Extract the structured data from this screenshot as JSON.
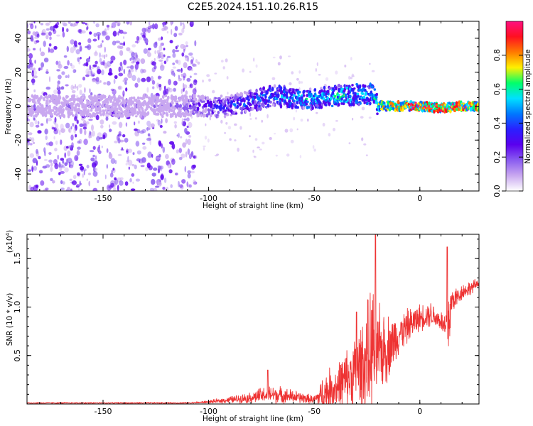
{
  "figure_title": "C2E5.2024.151.10.26.R15",
  "colors": {
    "snr_line": "#ee3333",
    "axis": "#000000",
    "colormap": [
      "#ffffff",
      "#c9a8f0",
      "#8a5cf0",
      "#5a00ee",
      "#2a20ff",
      "#0078ff",
      "#00e0ff",
      "#00ff6a",
      "#fff000",
      "#ff7a00",
      "#ff1020",
      "#ff1080"
    ]
  },
  "chart_data": [
    {
      "type": "heatmap",
      "panel": "top",
      "xlabel": "Height of straight line (km)",
      "ylabel": "Frequency (Hz)",
      "xlim": [
        -186,
        28
      ],
      "ylim": [
        -50,
        50
      ],
      "xticks": [
        -150,
        -100,
        -50,
        0
      ],
      "yticks": [
        -40,
        -20,
        0,
        20,
        40
      ],
      "colorbar": {
        "label": "Normalized spectral amplitude",
        "range": [
          0.0,
          1.0
        ],
        "ticks": [
          "0.0",
          "0.2",
          "0.4",
          "0.6",
          "0.8"
        ]
      },
      "ridge": {
        "x": [
          -186,
          -150,
          -120,
          -110,
          -100,
          -90,
          -80,
          -70,
          -60,
          -50,
          -40,
          -30,
          -25,
          -22,
          -20,
          -15,
          -10,
          0,
          10,
          20,
          28
        ],
        "freq": [
          0,
          0,
          0,
          0,
          0,
          0,
          3,
          6,
          5,
          4,
          6,
          7,
          6,
          7,
          0,
          0,
          0,
          0,
          -1,
          0,
          0
        ],
        "amplitude": [
          0.15,
          0.15,
          0.15,
          0.25,
          0.35,
          0.4,
          0.45,
          0.5,
          0.55,
          0.55,
          0.6,
          0.6,
          0.55,
          0.6,
          0.65,
          0.8,
          0.9,
          0.9,
          0.9,
          0.9,
          0.9
        ]
      }
    },
    {
      "type": "line",
      "panel": "bottom",
      "xlabel": "Height of straight line (km)",
      "ylabel": "SNR (10 * v/v)",
      "y_multiplier": "(x10",
      "y_multiplier_exp": "4",
      "xlim": [
        -186,
        28
      ],
      "ylim": [
        0,
        1.75
      ],
      "xticks": [
        -150,
        -100,
        -50,
        0
      ],
      "yticks": [
        "0.5",
        "1.0",
        "1.5"
      ],
      "envelope": {
        "x": [
          -186,
          -150,
          -110,
          -100,
          -90,
          -80,
          -75,
          -70,
          -60,
          -50,
          -45,
          -40,
          -35,
          -30,
          -25,
          -22,
          -20,
          -15,
          -10,
          -5,
          0,
          5,
          10,
          12,
          14,
          15,
          18,
          20,
          25,
          28
        ],
        "base": [
          0.01,
          0.01,
          0.01,
          0.02,
          0.04,
          0.06,
          0.08,
          0.09,
          0.07,
          0.04,
          0.1,
          0.15,
          0.22,
          0.3,
          0.4,
          0.5,
          0.5,
          0.55,
          0.7,
          0.8,
          0.88,
          0.92,
          0.85,
          0.75,
          0.85,
          1.05,
          1.1,
          1.15,
          1.2,
          1.25
        ],
        "spread": [
          0.01,
          0.01,
          0.01,
          0.02,
          0.05,
          0.08,
          0.12,
          0.14,
          0.1,
          0.06,
          0.3,
          0.35,
          0.45,
          0.6,
          0.8,
          1.1,
          0.7,
          0.5,
          0.3,
          0.25,
          0.2,
          0.2,
          0.15,
          0.3,
          0.7,
          0.2,
          0.15,
          0.12,
          0.1,
          0.06
        ]
      },
      "peaks": [
        {
          "x": -21,
          "y": 1.75
        },
        {
          "x": 13,
          "y": 1.62
        },
        {
          "x": -30,
          "y": 0.95
        },
        {
          "x": -72,
          "y": 0.35
        }
      ]
    }
  ]
}
